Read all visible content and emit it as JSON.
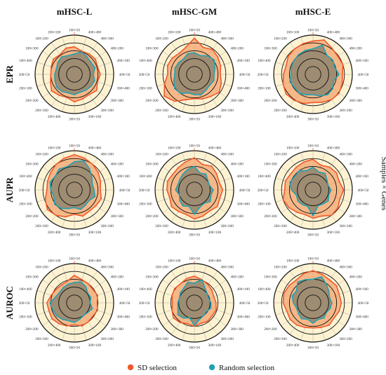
{
  "colors": {
    "sd": "#f0582a",
    "sd_fill": "#f4a46f",
    "random": "#1fa2b3",
    "random_fill": "#9a8a72",
    "bg": "#fdf3d3",
    "ring": "#111111",
    "radial": "#999999"
  },
  "side_label": "Samples × Genes",
  "legend": {
    "sd": "SD selection",
    "random": "Random selection"
  },
  "chart_data": {
    "type": "radar",
    "columns": [
      "mHSC-L",
      "mHSC-GM",
      "mHSC-E"
    ],
    "rows": [
      "EPR",
      "AUPR",
      "AUROC"
    ],
    "categories": [
      "100×50",
      "400×400",
      "400×300",
      "400×200",
      "400×100",
      "400×50",
      "300×400",
      "300×300",
      "300×200",
      "300×100",
      "300×50",
      "200×400",
      "200×300",
      "200×200",
      "200×100",
      "200×50",
      "100×400",
      "100×300",
      "100×200",
      "100×100"
    ],
    "series_names": [
      "SD selection",
      "Random selection"
    ],
    "panels": [
      {
        "row": "EPR",
        "col": "mHSC-L",
        "sd": [
          0.7,
          0.62,
          0.64,
          0.66,
          0.62,
          0.66,
          0.62,
          0.7,
          0.64,
          0.66,
          0.7,
          0.62,
          0.66,
          0.72,
          0.64,
          0.6,
          0.62,
          0.66,
          0.62,
          0.7
        ],
        "random": [
          0.52,
          0.6,
          0.55,
          0.52,
          0.55,
          0.48,
          0.54,
          0.52,
          0.5,
          0.48,
          0.52,
          0.5,
          0.54,
          0.56,
          0.52,
          0.5,
          0.48,
          0.52,
          0.55,
          0.5
        ]
      },
      {
        "row": "EPR",
        "col": "mHSC-GM",
        "sd": [
          0.92,
          0.72,
          0.78,
          0.74,
          0.7,
          0.66,
          0.72,
          0.78,
          0.7,
          0.66,
          0.62,
          0.68,
          0.85,
          0.95,
          0.8,
          0.68,
          0.72,
          0.7,
          0.66,
          0.72
        ],
        "random": [
          0.55,
          0.5,
          0.58,
          0.62,
          0.55,
          0.5,
          0.52,
          0.48,
          0.5,
          0.55,
          0.52,
          0.5,
          0.6,
          0.62,
          0.55,
          0.5,
          0.52,
          0.5,
          0.48,
          0.55
        ]
      },
      {
        "row": "EPR",
        "col": "mHSC-E",
        "sd": [
          0.85,
          0.92,
          0.82,
          0.78,
          0.8,
          0.75,
          0.78,
          0.82,
          0.8,
          0.75,
          0.72,
          0.78,
          0.82,
          0.85,
          0.8,
          0.75,
          0.72,
          0.78,
          0.8,
          0.82
        ],
        "random": [
          0.65,
          0.78,
          0.6,
          0.62,
          0.58,
          0.66,
          0.55,
          0.62,
          0.64,
          0.58,
          0.52,
          0.55,
          0.6,
          0.58,
          0.62,
          0.56,
          0.58,
          0.6,
          0.62,
          0.64
        ]
      },
      {
        "row": "AUPR",
        "col": "mHSC-L",
        "sd": [
          0.9,
          0.85,
          0.8,
          0.75,
          0.7,
          0.66,
          0.72,
          0.68,
          0.66,
          0.7,
          0.62,
          0.72,
          0.8,
          0.85,
          0.78,
          0.7,
          0.72,
          0.75,
          0.8,
          0.85
        ],
        "random": [
          0.72,
          0.78,
          0.66,
          0.55,
          0.48,
          0.5,
          0.55,
          0.46,
          0.48,
          0.52,
          0.45,
          0.5,
          0.58,
          0.62,
          0.55,
          0.6,
          0.65,
          0.6,
          0.66,
          0.62
        ]
      },
      {
        "row": "AUPR",
        "col": "mHSC-GM",
        "sd": [
          0.82,
          0.68,
          0.75,
          0.7,
          0.66,
          0.72,
          0.68,
          0.72,
          0.66,
          0.7,
          0.74,
          0.66,
          0.68,
          0.72,
          0.66,
          0.7,
          0.72,
          0.68,
          0.7,
          0.75
        ],
        "random": [
          0.6,
          0.45,
          0.5,
          0.42,
          0.4,
          0.48,
          0.44,
          0.5,
          0.42,
          0.46,
          0.62,
          0.44,
          0.5,
          0.46,
          0.4,
          0.48,
          0.44,
          0.46,
          0.5,
          0.55
        ]
      },
      {
        "row": "AUPR",
        "col": "mHSC-E",
        "sd": [
          0.78,
          0.66,
          0.72,
          0.74,
          0.7,
          0.78,
          0.72,
          0.78,
          0.8,
          0.7,
          0.72,
          0.66,
          0.7,
          0.76,
          0.8,
          0.72,
          0.74,
          0.7,
          0.72,
          0.75
        ],
        "random": [
          0.58,
          0.48,
          0.52,
          0.44,
          0.4,
          0.46,
          0.42,
          0.48,
          0.44,
          0.42,
          0.66,
          0.44,
          0.46,
          0.48,
          0.44,
          0.55,
          0.62,
          0.58,
          0.6,
          0.52
        ]
      },
      {
        "row": "AUROC",
        "col": "mHSC-L",
        "sd": [
          0.7,
          0.62,
          0.6,
          0.58,
          0.62,
          0.58,
          0.62,
          0.58,
          0.6,
          0.62,
          0.56,
          0.62,
          0.66,
          0.7,
          0.68,
          0.7,
          0.62,
          0.58,
          0.56,
          0.58
        ],
        "random": [
          0.52,
          0.56,
          0.5,
          0.42,
          0.44,
          0.4,
          0.48,
          0.42,
          0.4,
          0.44,
          0.5,
          0.48,
          0.52,
          0.56,
          0.58,
          0.62,
          0.5,
          0.46,
          0.48,
          0.5
        ]
      },
      {
        "row": "AUROC",
        "col": "mHSC-GM",
        "sd": [
          0.68,
          0.62,
          0.58,
          0.55,
          0.52,
          0.55,
          0.58,
          0.56,
          0.58,
          0.55,
          0.6,
          0.56,
          0.62,
          0.66,
          0.6,
          0.56,
          0.6,
          0.62,
          0.6,
          0.65
        ],
        "random": [
          0.5,
          0.62,
          0.46,
          0.4,
          0.38,
          0.42,
          0.44,
          0.38,
          0.4,
          0.44,
          0.58,
          0.4,
          0.48,
          0.52,
          0.44,
          0.42,
          0.4,
          0.44,
          0.46,
          0.55
        ]
      },
      {
        "row": "AUROC",
        "col": "mHSC-E",
        "sd": [
          0.82,
          0.76,
          0.72,
          0.74,
          0.7,
          0.72,
          0.7,
          0.66,
          0.7,
          0.66,
          0.64,
          0.66,
          0.7,
          0.72,
          0.7,
          0.76,
          0.78,
          0.75,
          0.72,
          0.78
        ],
        "random": [
          0.6,
          0.7,
          0.58,
          0.5,
          0.44,
          0.48,
          0.46,
          0.42,
          0.48,
          0.44,
          0.52,
          0.44,
          0.5,
          0.46,
          0.44,
          0.5,
          0.56,
          0.52,
          0.66,
          0.62
        ]
      }
    ],
    "rmax": 1.0,
    "grid": true,
    "legend_position": "bottom"
  }
}
